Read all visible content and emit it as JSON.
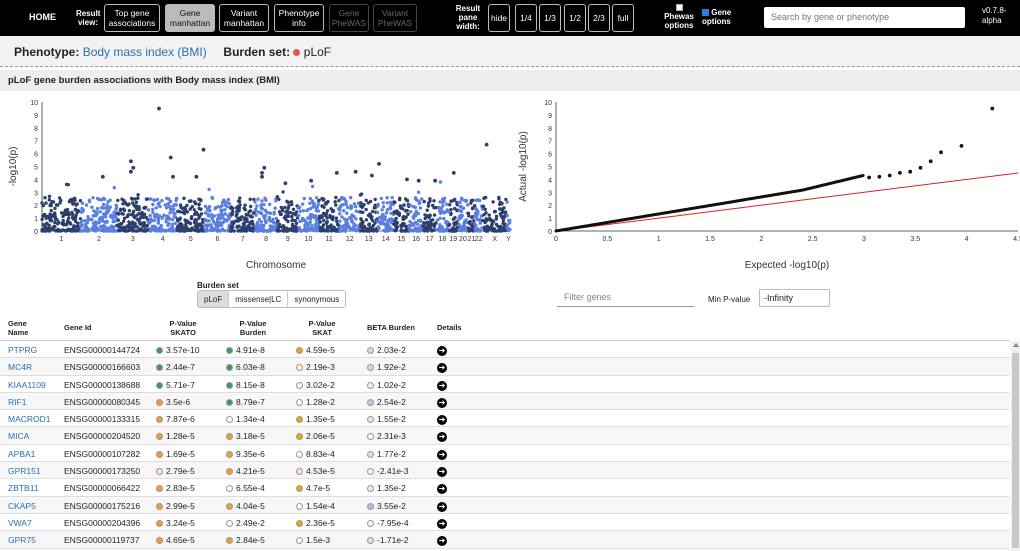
{
  "nav": {
    "home": "HOME",
    "result_view_label": "Result view:",
    "views": [
      {
        "label": "Top gene associations",
        "state": "normal"
      },
      {
        "label": "Gene manhattan",
        "state": "active"
      },
      {
        "label": "Variant manhattan",
        "state": "normal"
      },
      {
        "label": "Phenotype info",
        "state": "normal"
      },
      {
        "label": "Gene PheWAS",
        "state": "disabled"
      },
      {
        "label": "Variant PheWAS",
        "state": "disabled"
      }
    ],
    "pane_width_label": "Result pane width:",
    "pane_widths": [
      "hide",
      "1/4",
      "1/3",
      "1/2",
      "2/3",
      "full"
    ],
    "phewas_options": "Phewas options",
    "gene_options": "Gene options",
    "search_placeholder": "Search by gene or phenotype",
    "version": "v0.7.8-alpha"
  },
  "phenotype": {
    "label": "Phenotype:",
    "name": "Body mass index (BMI)",
    "burden_label": "Burden set:",
    "burden_value": "pLoF",
    "burden_color": "#e05a4f"
  },
  "panel_title": "pLoF gene burden associations with Body mass index (BMI)",
  "manhattan": {
    "ylabel": "-log10(p)",
    "xlabel": "Chromosome",
    "yticks": [
      "0",
      "1",
      "2",
      "3",
      "4",
      "5",
      "6",
      "7",
      "8",
      "9",
      "10"
    ],
    "chromosomes": [
      "1",
      "2",
      "3",
      "4",
      "5",
      "6",
      "7",
      "8",
      "9",
      "10",
      "11",
      "12",
      "13",
      "14",
      "15",
      "16",
      "17",
      "18",
      "19",
      "20",
      "21",
      "22",
      "X",
      "Y"
    ],
    "colors": [
      "#2c3e6e",
      "#5b7fe0"
    ]
  },
  "qq": {
    "ylabel": "Actual -log10(p)",
    "xlabel": "Expected -log10(p)",
    "yticks": [
      "0",
      "1",
      "2",
      "3",
      "4",
      "5",
      "6",
      "7",
      "8",
      "9",
      "10"
    ],
    "xticks": [
      "0",
      "0.5",
      "1",
      "1.5",
      "2",
      "2.5",
      "3",
      "3.5",
      "4",
      "4.5"
    ],
    "line_color": "#e02020"
  },
  "controls": {
    "burden_set_label": "Burden set",
    "burden_options": [
      "pLoF",
      "missense|LC",
      "synonymous"
    ],
    "filter_placeholder": "Filter genes",
    "min_p_label": "Min P-value",
    "min_p_value": "-Infinity"
  },
  "table": {
    "headers": {
      "gene": "Gene Name",
      "gene_id": "Gene Id",
      "skato": "P-Value SKATO",
      "burden": "P-Value Burden",
      "skat": "P-Value SKAT",
      "beta": "BETA Burden",
      "details": "Details"
    },
    "rows": [
      {
        "gene": "PTPRG",
        "id": "ENSG00000144724",
        "skato": "3.57e-10",
        "skato_c": "#3a9a5b",
        "burden": "4.91e-8",
        "burden_c": "#3a9a5b",
        "skat": "4.59e-5",
        "skat_c": "#f0a020",
        "beta": "2.03e-2",
        "beta_c": "#c9d9ee"
      },
      {
        "gene": "MC4R",
        "id": "ENSG00000166603",
        "skato": "2.44e-7",
        "skato_c": "#3a9a5b",
        "burden": "6.03e-8",
        "burden_c": "#3a9a5b",
        "skat": "2.19e-3",
        "skat_c": "#fdf3e0",
        "beta": "1.92e-2",
        "beta_c": "#c9d9ee"
      },
      {
        "gene": "KIAA1109",
        "id": "ENSG00000138688",
        "skato": "5.71e-7",
        "skato_c": "#3a9a5b",
        "burden": "8.15e-8",
        "burden_c": "#3a9a5b",
        "skat": "3.02e-2",
        "skat_c": "#ffffff",
        "beta": "1.02e-2",
        "beta_c": "#eef3fa"
      },
      {
        "gene": "RIF1",
        "id": "ENSG00000080345",
        "skato": "3.5e-6",
        "skato_c": "#f0a020",
        "burden": "8.79e-7",
        "burden_c": "#3a9a5b",
        "skat": "1.28e-2",
        "skat_c": "#ffffff",
        "beta": "2.54e-2",
        "beta_c": "#b7cbea"
      },
      {
        "gene": "MACROD1",
        "id": "ENSG00000133315",
        "skato": "7.87e-6",
        "skato_c": "#f0a020",
        "burden": "1.34e-4",
        "burden_c": "#ffffff",
        "skat": "1.35e-5",
        "skat_c": "#f0a020",
        "beta": "1.55e-2",
        "beta_c": "#dbe6f4"
      },
      {
        "gene": "MICA",
        "id": "ENSG00000204520",
        "skato": "1.28e-5",
        "skato_c": "#f0a020",
        "burden": "3.18e-5",
        "burden_c": "#f0a020",
        "skat": "2.06e-5",
        "skat_c": "#f0a020",
        "beta": "2.31e-3",
        "beta_c": "#f6f8fc"
      },
      {
        "gene": "APBA1",
        "id": "ENSG00000107282",
        "skato": "1.69e-5",
        "skato_c": "#f0a020",
        "burden": "9.35e-6",
        "burden_c": "#f0a020",
        "skat": "8.83e-4",
        "skat_c": "#ffffff",
        "beta": "1.77e-2",
        "beta_c": "#d2dff1"
      },
      {
        "gene": "GPR151",
        "id": "ENSG00000173250",
        "skato": "2.79e-5",
        "skato_c": "#fbe3c4",
        "burden": "4.21e-5",
        "burden_c": "#f0a020",
        "skat": "4.53e-5",
        "skat_c": "#fbe3c4",
        "beta": "-2.41e-3",
        "beta_c": "#fdf3ef"
      },
      {
        "gene": "ZBTB11",
        "id": "ENSG00000066422",
        "skato": "2.83e-5",
        "skato_c": "#f0a020",
        "burden": "6.55e-4",
        "burden_c": "#ffffff",
        "skat": "4.7e-5",
        "skat_c": "#f0a020",
        "beta": "1.35e-2",
        "beta_c": "#e2eaf6"
      },
      {
        "gene": "CKAP5",
        "id": "ENSG00000175216",
        "skato": "2.99e-5",
        "skato_c": "#f0a020",
        "burden": "4.04e-5",
        "burden_c": "#f0a020",
        "skat": "1.54e-4",
        "skat_c": "#ffffff",
        "beta": "3.55e-2",
        "beta_c": "#a8c0e6"
      },
      {
        "gene": "VWA7",
        "id": "ENSG00000204396",
        "skato": "3.24e-5",
        "skato_c": "#f0a020",
        "burden": "2.49e-2",
        "burden_c": "#ffffff",
        "skat": "2.36e-5",
        "skat_c": "#f0a020",
        "beta": "-7.95e-4",
        "beta_c": "#fdf5f2"
      },
      {
        "gene": "GPR75",
        "id": "ENSG00000119737",
        "skato": "4.65e-5",
        "skato_c": "#f0a020",
        "burden": "2.84e-5",
        "burden_c": "#f0a020",
        "skat": "1.5e-3",
        "skat_c": "#ffffff",
        "beta": "-1.71e-2",
        "beta_c": "#f6d7cf"
      }
    ]
  }
}
